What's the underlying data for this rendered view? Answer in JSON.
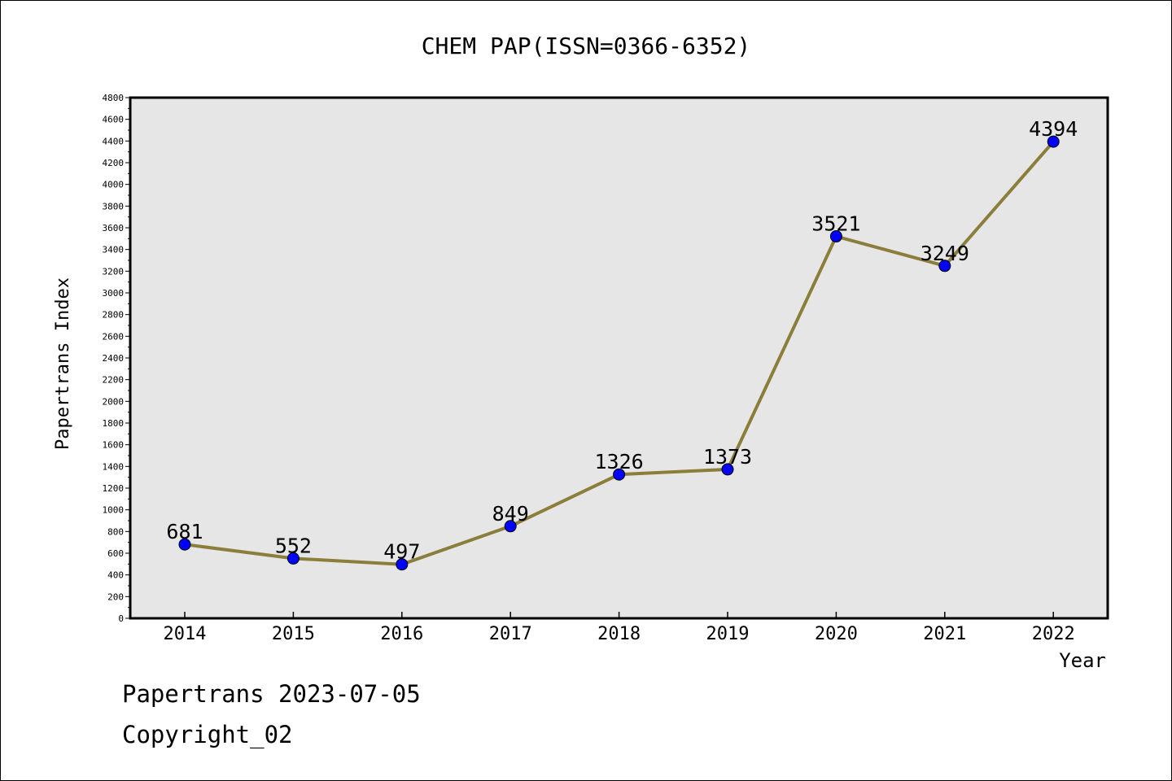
{
  "chart_data": {
    "type": "line",
    "title": "CHEM PAP(ISSN=0366-6352)",
    "xlabel": "Year",
    "ylabel": "Papertrans Index",
    "categories": [
      "2014",
      "2015",
      "2016",
      "2017",
      "2018",
      "2019",
      "2020",
      "2021",
      "2022"
    ],
    "series": [
      {
        "values": [
          681,
          552,
          497,
          849,
          1326,
          1373,
          3521,
          3249,
          4394
        ]
      }
    ],
    "ylim": [
      0,
      4800
    ],
    "ytick_step": 200,
    "grid": false,
    "line_color": "#8B7D3A",
    "marker_color": "#0000FF",
    "plot_background": "#E6E6E6"
  },
  "footer": {
    "line1": "Papertrans 2023-07-05",
    "line2": "Copyright_02"
  }
}
